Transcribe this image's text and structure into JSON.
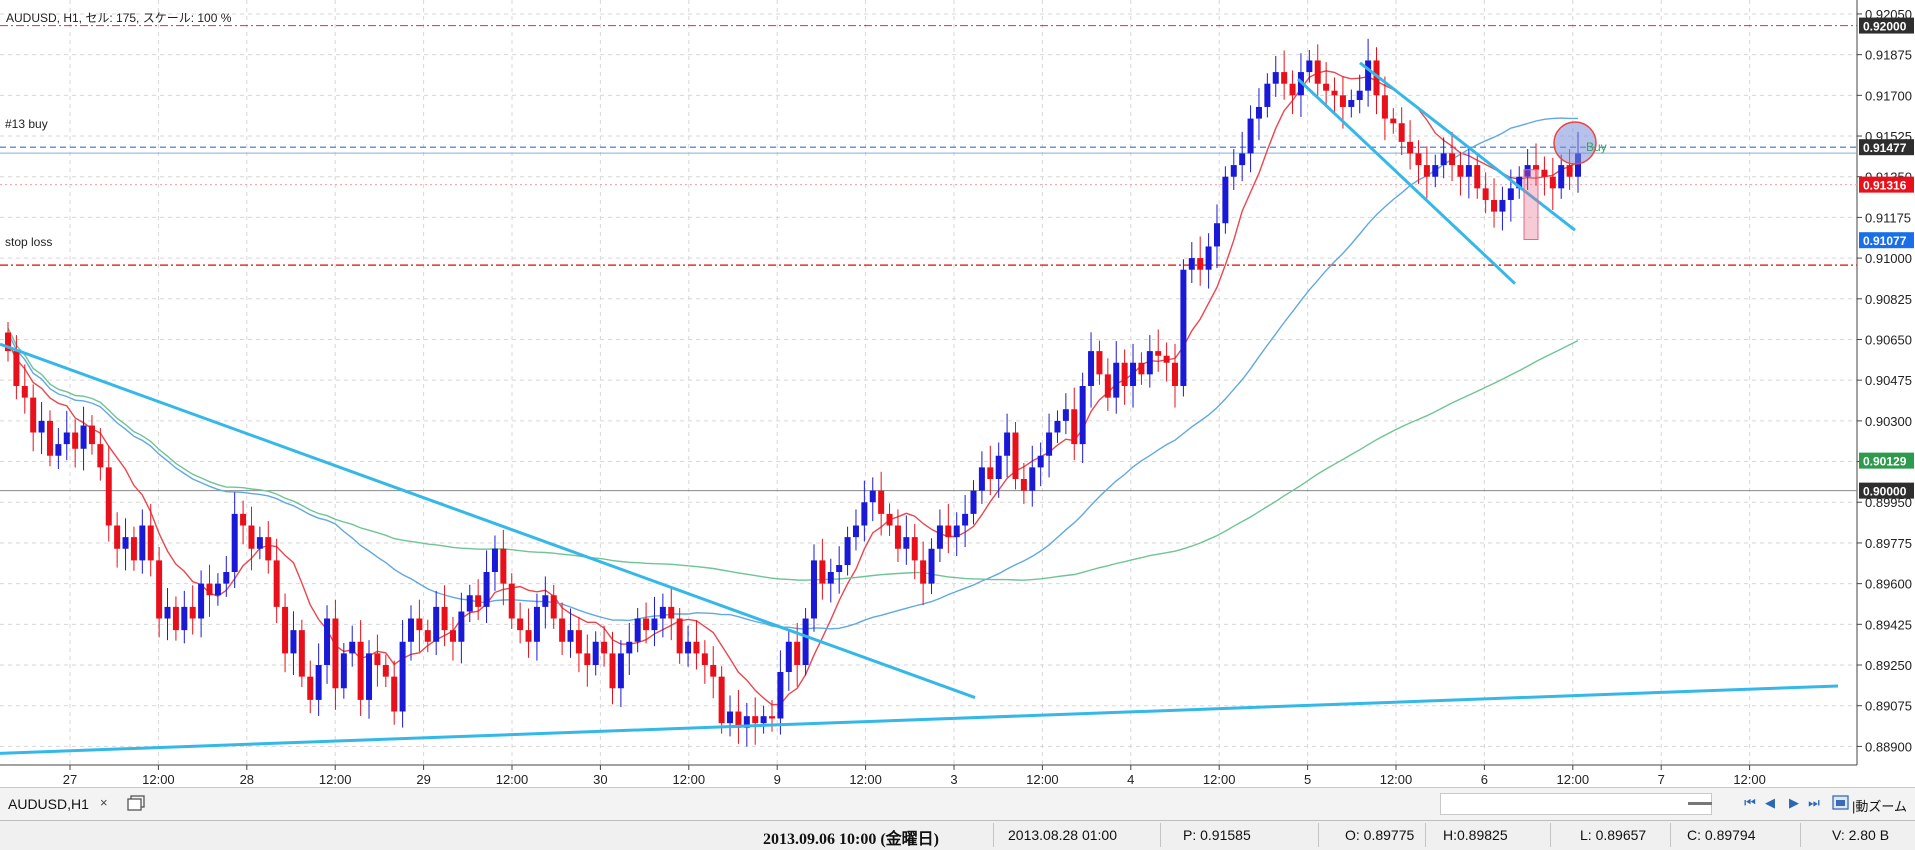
{
  "chart_title": "AUDUSD, H1, セル: 175, スケール: 100 %",
  "annotations": {
    "buy_line_label": "#13 buy",
    "stop_loss_label": "stop loss",
    "buy_marker_label": "Buy"
  },
  "price_tags": [
    {
      "value": "0.92000",
      "style": "dark"
    },
    {
      "value": "0.91477",
      "style": "dark"
    },
    {
      "value": "0.91316",
      "style": "red"
    },
    {
      "value": "0.91077",
      "style": "blue"
    },
    {
      "value": "0.90129",
      "style": "green"
    },
    {
      "value": "0.90000",
      "style": "dark"
    }
  ],
  "colors": {
    "bull": "#1a1ad6",
    "bear": "#e8101a",
    "ema_fast": "#e8474f",
    "ma_mid": "#62a8e0",
    "ma_slow": "#6fc496",
    "trendline": "#35b8e8",
    "stop": "#e03030",
    "buy": "#3a6fd4"
  },
  "chart_data": {
    "type": "candlestick",
    "title": "AUDUSD, H1, セル: 175, スケール: 100 %",
    "y_ticks": [
      "0.92050",
      "0.91875",
      "0.91700",
      "0.91525",
      "0.91350",
      "0.91175",
      "0.91000",
      "0.90825",
      "0.90650",
      "0.90475",
      "0.90300",
      "0.90125",
      "0.89950",
      "0.89775",
      "0.89600",
      "0.89425",
      "0.89250",
      "0.89075",
      "0.88900"
    ],
    "ylim": [
      0.8882,
      0.9211
    ],
    "x_ticks": [
      "27",
      "12:00",
      "28",
      "12:00",
      "29",
      "12:00",
      "30",
      "12:00",
      "9",
      "12:00",
      "3",
      "12:00",
      "4",
      "12:00",
      "5",
      "12:00",
      "6",
      "12:00",
      "7",
      "12:00"
    ],
    "horizontal_levels": {
      "buy": 0.91477,
      "stop_loss": 0.9097,
      "top": 0.92,
      "round": 0.9
    },
    "current_bid": 0.91316,
    "candle_closes": [
      0.906,
      0.9045,
      0.904,
      0.9025,
      0.903,
      0.9015,
      0.902,
      0.9025,
      0.9018,
      0.9028,
      0.902,
      0.901,
      0.8985,
      0.8975,
      0.898,
      0.897,
      0.8985,
      0.897,
      0.8945,
      0.895,
      0.894,
      0.895,
      0.8945,
      0.896,
      0.8955,
      0.896,
      0.8965,
      0.899,
      0.8985,
      0.8975,
      0.898,
      0.897,
      0.895,
      0.893,
      0.894,
      0.892,
      0.891,
      0.8925,
      0.8945,
      0.8915,
      0.893,
      0.8935,
      0.891,
      0.893,
      0.8925,
      0.892,
      0.8905,
      0.8935,
      0.8945,
      0.894,
      0.8935,
      0.895,
      0.894,
      0.8935,
      0.8948,
      0.8955,
      0.895,
      0.8965,
      0.8975,
      0.896,
      0.8945,
      0.894,
      0.8935,
      0.895,
      0.8955,
      0.8945,
      0.8935,
      0.894,
      0.893,
      0.8925,
      0.8935,
      0.893,
      0.8915,
      0.893,
      0.8935,
      0.8945,
      0.894,
      0.8945,
      0.895,
      0.8945,
      0.893,
      0.8935,
      0.893,
      0.8925,
      0.892,
      0.89,
      0.8905,
      0.8898,
      0.8903,
      0.89,
      0.8903,
      0.8902,
      0.8922,
      0.8935,
      0.8925,
      0.8945,
      0.897,
      0.896,
      0.8965,
      0.8968,
      0.898,
      0.8985,
      0.8995,
      0.9,
      0.899,
      0.8985,
      0.8975,
      0.898,
      0.897,
      0.896,
      0.8975,
      0.8985,
      0.898,
      0.8985,
      0.899,
      0.9,
      0.901,
      0.9005,
      0.9015,
      0.9025,
      0.9005,
      0.9,
      0.901,
      0.9015,
      0.9025,
      0.903,
      0.9035,
      0.902,
      0.9045,
      0.906,
      0.905,
      0.904,
      0.9055,
      0.9045,
      0.9055,
      0.905,
      0.906,
      0.9058,
      0.9055,
      0.9045,
      0.9095,
      0.91,
      0.9095,
      0.9105,
      0.9115,
      0.9135,
      0.914,
      0.9145,
      0.916,
      0.9165,
      0.9175,
      0.918,
      0.9175,
      0.917,
      0.918,
      0.9185,
      0.9175,
      0.9172,
      0.917,
      0.9165,
      0.9168,
      0.9172,
      0.9185,
      0.917,
      0.916,
      0.9158,
      0.915,
      0.9145,
      0.914,
      0.9135,
      0.914,
      0.9145,
      0.914,
      0.9135,
      0.914,
      0.913,
      0.9125,
      0.912,
      0.9125,
      0.913,
      0.9135,
      0.914,
      0.9138,
      0.9135,
      0.913,
      0.914,
      0.9135,
      0.9145
    ]
  },
  "tabs": [
    {
      "label": "AUDUSD,H1",
      "close": "×"
    }
  ],
  "toolbar": {
    "zoom_label": "|動ズーム",
    "nav_first": "⏮",
    "nav_prev": "◀",
    "nav_next": "▶",
    "nav_last": "⏭"
  },
  "status": {
    "datetime": "2013.09.06 10:00 (金曜日)",
    "bar_time": "2013.08.28 01:00",
    "price": "P: 0.91585",
    "open": "O: 0.89775",
    "high": "H:0.89825",
    "low": "L: 0.89657",
    "close": "C: 0.89794",
    "volume": "V: 2.80 B"
  }
}
